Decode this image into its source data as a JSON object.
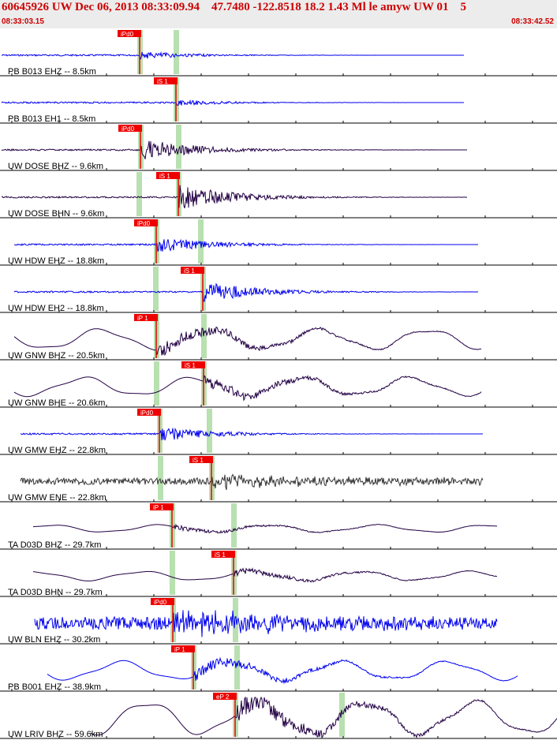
{
  "header": {
    "title": "60645926 UW Dec 06, 2013 08:33:09.94    47.7480 -122.8518 18.2 1.43 Ml le amyw UW 01    5",
    "start_time": "08:33:03.15",
    "end_time": "08:33:42.52"
  },
  "colors": {
    "blue": "#0000ee",
    "purple": "#220044",
    "gray": "#333333",
    "pick": "#ee0000",
    "marker": "#b8e0b0",
    "axis": "#000000"
  },
  "chart_data": {
    "type": "line",
    "title": "60645926 UW Dec 06, 2013 08:33:09.94 47.7480 -122.8518 18.2 1.43 Ml le amyw UW 01 5",
    "x_range": [
      "08:33:03.15",
      "08:33:42.52"
    ],
    "series": [
      {
        "label": "PB B013 EHZ -- 8.5km",
        "pick": "iPd0",
        "color": "blue",
        "style": "hf",
        "amp": 0.18
      },
      {
        "label": "PB B013 EH1 -- 8.5km",
        "pick": "iS 1",
        "color": "blue",
        "style": "hf",
        "amp": 0.15
      },
      {
        "label": "UW DOSE BHZ -- 9.6km",
        "pick": "iPd0",
        "color": "purple",
        "style": "hf",
        "amp": 0.55
      },
      {
        "label": "UW DOSE BHN -- 9.6km",
        "pick": "iS 1",
        "color": "purple",
        "style": "hf",
        "amp": 0.6
      },
      {
        "label": "UW HDW EHZ -- 18.8km",
        "pick": "iPd0",
        "color": "blue",
        "style": "hf",
        "amp": 0.4
      },
      {
        "label": "UW HDW EH2 -- 18.8km",
        "pick": "iS 1",
        "color": "blue",
        "style": "hf",
        "amp": 0.5
      },
      {
        "label": "UW GNW BHZ -- 20.5km",
        "pick": "iP 1",
        "color": "purple",
        "style": "lf",
        "amp": 0.55
      },
      {
        "label": "UW GNW BHE -- 20.6km",
        "pick": "iS 1",
        "color": "purple",
        "style": "lf",
        "amp": 0.5
      },
      {
        "label": "UW GMW EHZ -- 22.8km",
        "pick": "iPd0",
        "color": "blue",
        "style": "hf",
        "amp": 0.35
      },
      {
        "label": "UW GMW ENE -- 22.8km",
        "pick": "iS 1",
        "color": "gray",
        "style": "noise",
        "amp": 0.45
      },
      {
        "label": "TA D03D BHZ -- 29.7km",
        "pick": "iP 1",
        "color": "purple",
        "style": "lf",
        "amp": 0.2
      },
      {
        "label": "TA D03D BHN -- 29.7km",
        "pick": "iS 1",
        "color": "purple",
        "style": "lf",
        "amp": 0.25
      },
      {
        "label": "UW BLN EHZ -- 30.2km",
        "pick": "iPd0",
        "color": "blue",
        "style": "noise",
        "amp": 0.85
      },
      {
        "label": "PB B001 EHZ -- 38.9km",
        "pick": "iP 1",
        "color": "blue",
        "style": "lf",
        "amp": 0.5
      },
      {
        "label": "UW LRIV BHZ -- 59.6km",
        "pick": "eP 2",
        "color": "purple",
        "style": "lf",
        "amp": 0.9
      }
    ]
  }
}
